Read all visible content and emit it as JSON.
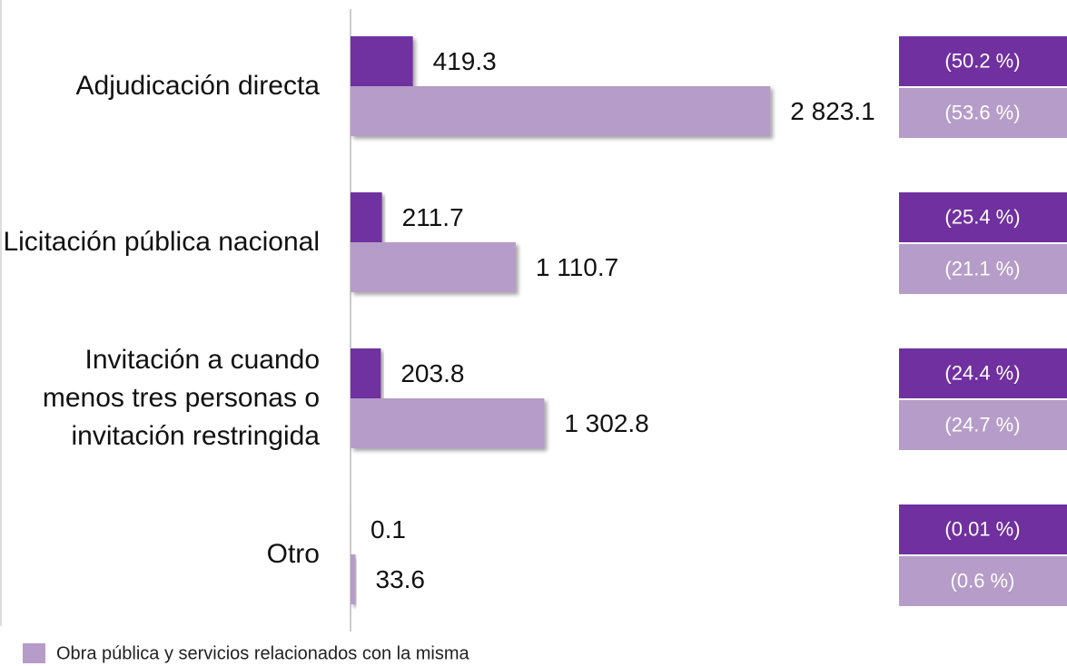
{
  "chart_data": {
    "type": "bar",
    "orientation": "horizontal",
    "categories": [
      "Adjudicación directa",
      "Licitación pública nacional",
      "Invitación a cuando menos tres personas o invitación restringida",
      "Otro"
    ],
    "xlim": [
      0,
      4800
    ],
    "series": [
      {
        "color": "#7030a0",
        "values": [
          419.3,
          211.7,
          203.8,
          0.1
        ],
        "percent_labels": [
          "(50.2 %)",
          "(25.4 %)",
          "(24.4 %)",
          "(0.01 %)"
        ]
      },
      {
        "name": "Obra pública y servicios relacionados con la misma",
        "color": "#b69cc8",
        "values": [
          2823.1,
          1110.7,
          1302.8,
          33.6
        ],
        "value_labels": [
          "2 823.1",
          "1 110.7",
          "1 302.8",
          "33.6"
        ],
        "percent_labels": [
          "(53.6 %)",
          "(21.1 %)",
          "(24.7 %)",
          "(0.6 %)"
        ]
      }
    ]
  }
}
